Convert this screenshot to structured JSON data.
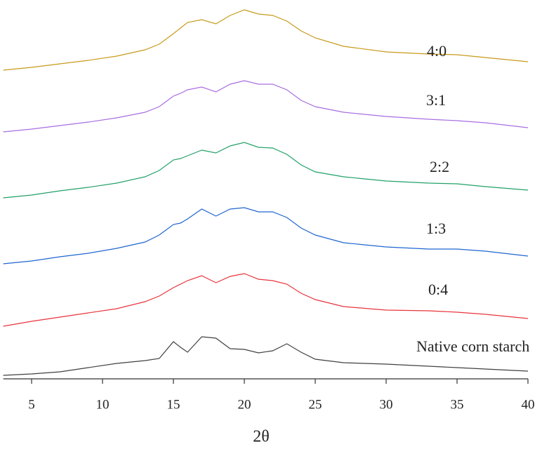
{
  "chart_data": {
    "type": "line",
    "xlabel": "2θ",
    "x": [
      3,
      5,
      7,
      9,
      11,
      13,
      14,
      15,
      15.5,
      16,
      17,
      18,
      19,
      20,
      21,
      22,
      23,
      24,
      25,
      27,
      30,
      33,
      35,
      37,
      40
    ],
    "xlim": [
      3,
      40
    ],
    "xticks": [
      5,
      10,
      15,
      20,
      25,
      30,
      35,
      40
    ],
    "ylim": [
      0,
      540
    ],
    "series": [
      {
        "name": "Native corn starch",
        "color": "#404040",
        "values": [
          5,
          7,
          10,
          16,
          22,
          26,
          29,
          53,
          45,
          38,
          60,
          58,
          43,
          42,
          37,
          40,
          50,
          38,
          28,
          23,
          21,
          18,
          16,
          14,
          11
        ]
      },
      {
        "name": "0:4",
        "color": "#e8343c",
        "values": [
          75,
          82,
          88,
          94,
          100,
          110,
          118,
          130,
          135,
          140,
          147,
          137,
          146,
          150,
          142,
          140,
          135,
          122,
          113,
          103,
          98,
          97,
          95,
          92,
          86
        ]
      },
      {
        "name": "1:3",
        "color": "#1f66d0",
        "values": [
          164,
          168,
          174,
          179,
          186,
          195,
          205,
          220,
          222,
          228,
          242,
          232,
          242,
          244,
          238,
          238,
          230,
          215,
          205,
          194,
          188,
          185,
          185,
          182,
          175
        ]
      },
      {
        "name": "2:2",
        "color": "#23a068",
        "values": [
          258,
          262,
          268,
          273,
          279,
          288,
          297,
          312,
          314,
          318,
          326,
          322,
          332,
          337,
          330,
          329,
          320,
          305,
          295,
          288,
          282,
          279,
          278,
          274,
          269
        ]
      },
      {
        "name": "3:1",
        "color": "#a86ee0",
        "values": [
          352,
          356,
          361,
          366,
          372,
          380,
          388,
          403,
          407,
          412,
          416,
          409,
          420,
          425,
          420,
          420,
          412,
          397,
          388,
          380,
          374,
          370,
          368,
          365,
          358
        ]
      },
      {
        "name": "4:0",
        "color": "#c89a1a",
        "values": [
          440,
          444,
          449,
          454,
          460,
          469,
          477,
          492,
          500,
          508,
          512,
          506,
          518,
          526,
          520,
          518,
          510,
          496,
          486,
          474,
          466,
          463,
          462,
          458,
          452
        ]
      }
    ]
  }
}
